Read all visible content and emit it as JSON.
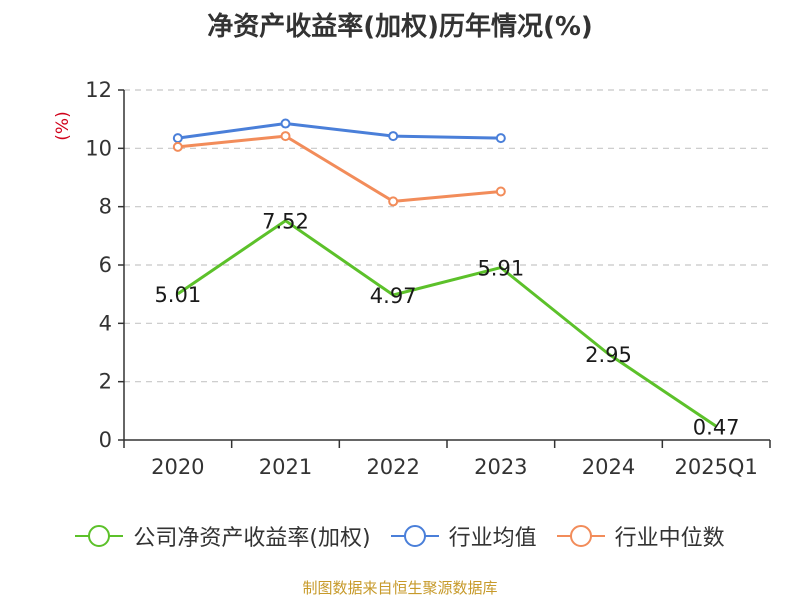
{
  "chart_data": {
    "type": "line",
    "title": "净资产收益率(加权)历年情况(%)",
    "ylabel": "(%)",
    "xlabel": "",
    "categories": [
      "2020",
      "2021",
      "2022",
      "2023",
      "2024",
      "2025Q1"
    ],
    "ylim": [
      0,
      12
    ],
    "yticks": [
      0,
      2,
      4,
      6,
      8,
      10,
      12
    ],
    "grid": true,
    "legend_position": "bottom",
    "series": [
      {
        "name": "公司净资产收益率(加权)",
        "color": "#5cc12a",
        "values": [
          5.01,
          7.52,
          4.97,
          5.91,
          2.95,
          0.47
        ],
        "labels": [
          "5.01",
          "7.52",
          "4.97",
          "5.91",
          "2.95",
          "0.47"
        ],
        "show_labels": true,
        "show_markers": false
      },
      {
        "name": "行业均值",
        "color": "#4a7fd9",
        "values": [
          10.35,
          10.85,
          10.42,
          10.35,
          null,
          null
        ],
        "show_labels": false,
        "show_markers": true
      },
      {
        "name": "行业中位数",
        "color": "#f28c5a",
        "values": [
          10.05,
          10.42,
          8.18,
          8.52,
          null,
          null
        ],
        "show_labels": false,
        "show_markers": true
      }
    ],
    "source": "制图数据来自恒生聚源数据库"
  }
}
